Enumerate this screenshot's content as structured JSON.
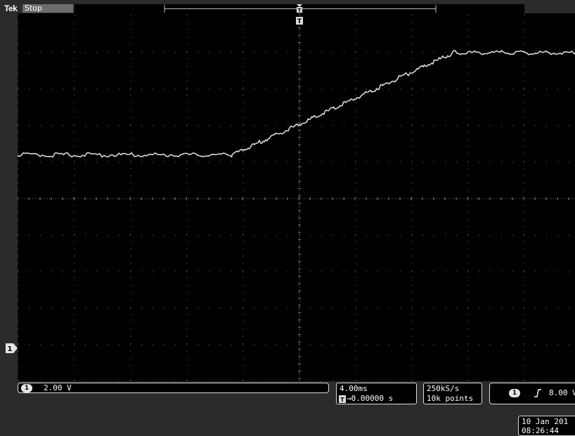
{
  "header": {
    "brand": "Tek",
    "run_state": "Stop"
  },
  "channel": {
    "number": "1",
    "scale": "2.00 V",
    "ground_marker": "1"
  },
  "timebase": {
    "per_div": "4.00ms",
    "position_icon": "trigger-position-icon",
    "position": "→0.00000 s"
  },
  "acquisition": {
    "sample_rate": "250kS/s",
    "record_length": "10k points"
  },
  "trigger": {
    "source": "1",
    "slope_icon": "rising-edge-icon",
    "level": "8.00 V"
  },
  "datetime": {
    "date": "10 Jan  201",
    "time": "08:26:44"
  },
  "colors": {
    "trace": "#d8d8d8",
    "grid": "#7a7a7a",
    "bezel": "#2b2b2b",
    "status_box": "#6d6d6d"
  },
  "chart_data": {
    "type": "line",
    "series": [
      {
        "values_description_free": true,
        "x_div": [
          -8,
          -1.2,
          2.8,
          8
        ],
        "y_div": [
          1.2,
          1.2,
          4.0,
          4.0
        ]
      }
    ],
    "x_divisions": 10,
    "y_divisions": 8,
    "grid": true
  }
}
